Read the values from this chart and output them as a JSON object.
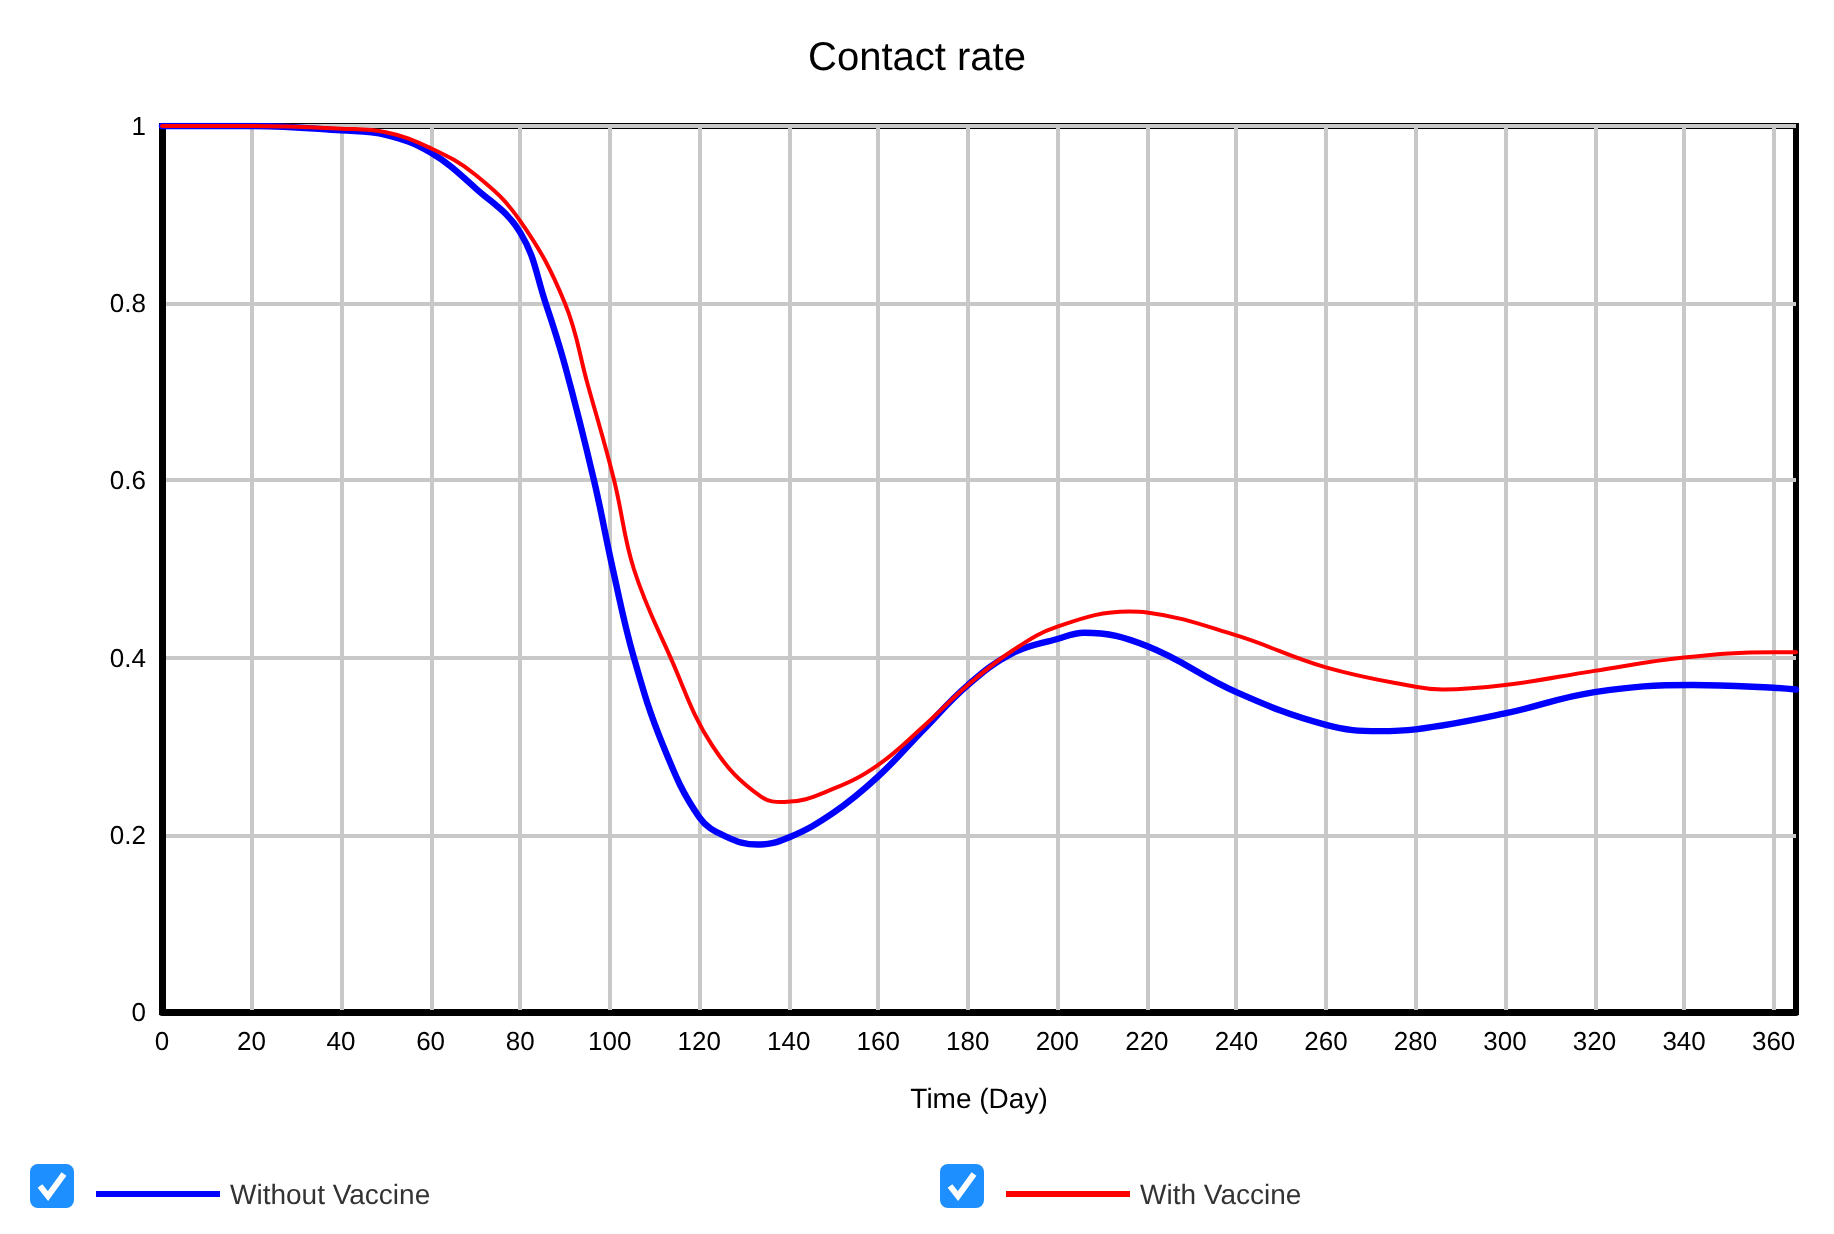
{
  "chart_data": {
    "type": "line",
    "title": "Contact rate",
    "xlabel": "Time (Day)",
    "xlim": [
      0,
      365
    ],
    "xticks": [
      0,
      20,
      40,
      60,
      80,
      100,
      120,
      140,
      160,
      180,
      200,
      220,
      240,
      260,
      280,
      300,
      320,
      340,
      360
    ],
    "ylim": [
      0,
      1
    ],
    "yticks": [
      0,
      0.2,
      0.4,
      0.6,
      0.8,
      1
    ],
    "grid": true,
    "legend": "bottom",
    "marker": "none",
    "line_style": "solid",
    "series": [
      {
        "name": "Without Vaccine",
        "color": "#0000ff",
        "x": [
          0,
          20,
          40,
          50,
          60,
          70,
          80,
          85.7,
          90,
          96.5,
          100.7,
          105.4,
          112,
          120,
          126,
          133,
          140,
          150,
          160,
          170,
          180,
          190,
          200,
          206,
          220,
          240,
          260,
          272,
          280,
          300,
          320,
          342,
          360,
          365
        ],
        "values": [
          1,
          1,
          0.995,
          0.99,
          0.97,
          0.93,
          0.88,
          0.8,
          0.73,
          0.6,
          0.5,
          0.4,
          0.3,
          0.22,
          0.198,
          0.189,
          0.197,
          0.225,
          0.266,
          0.318,
          0.369,
          0.405,
          0.421,
          0.428,
          0.413,
          0.361,
          0.324,
          0.317,
          0.319,
          0.337,
          0.361,
          0.369,
          0.366,
          0.364
        ]
      },
      {
        "name": "With Vaccine",
        "color": "#ff0000",
        "x": [
          0,
          20,
          40,
          50,
          60,
          70,
          80,
          90,
          95,
          101,
          105.4,
          113.6,
          123,
          133.8,
          139,
          150,
          160,
          170,
          180,
          190,
          200,
          216,
          220,
          240,
          260,
          280,
          286,
          300,
          320,
          340,
          360,
          365
        ],
        "values": [
          1,
          1,
          0.997,
          0.993,
          0.975,
          0.945,
          0.893,
          0.8,
          0.71,
          0.6,
          0.5,
          0.4,
          0.3,
          0.243,
          0.237,
          0.252,
          0.279,
          0.322,
          0.369,
          0.408,
          0.435,
          0.452,
          0.451,
          0.425,
          0.389,
          0.367,
          0.364,
          0.369,
          0.385,
          0.4,
          0.406,
          0.406
        ]
      }
    ]
  }
}
